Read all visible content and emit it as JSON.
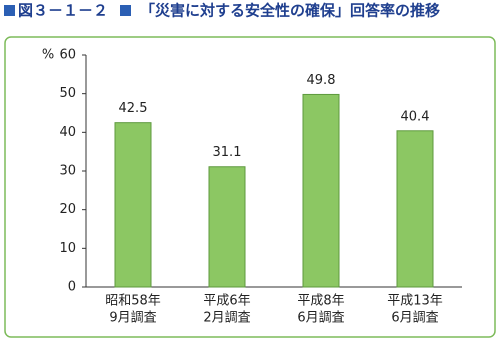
{
  "chart_data": {
    "type": "bar",
    "title_number": "図３－１－２",
    "title": "「災害に対する安全性の確保」回答率の推移",
    "y_label": "%",
    "categories": [
      [
        "昭和58年",
        "9月調査"
      ],
      [
        "平成6年",
        "2月調査"
      ],
      [
        "平成8年",
        "6月調査"
      ],
      [
        "平成13年",
        "6月調査"
      ]
    ],
    "values": [
      42.5,
      31.1,
      49.8,
      40.4
    ],
    "color": "#8cc763",
    "ylim": [
      0,
      60
    ],
    "yticks": [
      0,
      10,
      20,
      30,
      40,
      50,
      60
    ],
    "grid": false
  }
}
